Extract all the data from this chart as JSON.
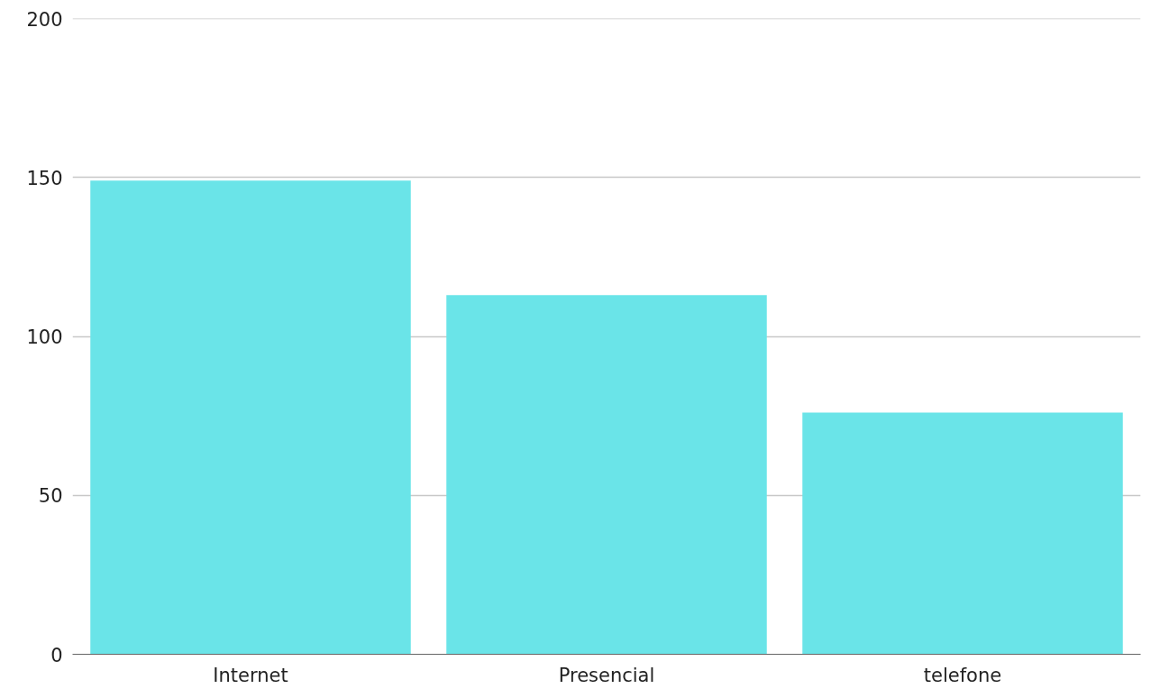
{
  "chart_data": {
    "type": "bar",
    "categories": [
      "Internet",
      "Presencial",
      "telefone"
    ],
    "values": [
      149,
      113,
      76
    ],
    "color": "#6ae4e8",
    "ylim": [
      0,
      200
    ],
    "yticks": [
      0,
      50,
      100,
      150,
      200
    ],
    "grid": "y"
  }
}
